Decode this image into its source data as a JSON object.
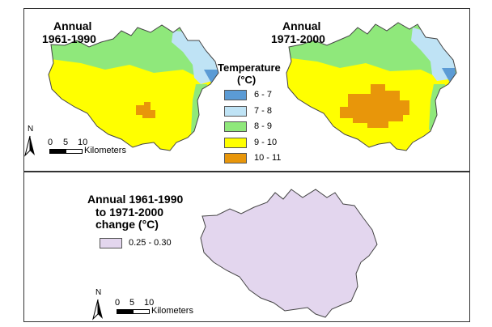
{
  "maps": {
    "annual_1961_1990": {
      "title_line1": "Annual",
      "title_line2": "1961-1990"
    },
    "annual_1971_2000": {
      "title_line1": "Annual",
      "title_line2": "1971-2000"
    },
    "change": {
      "title_line1": "Annual 1961-1990",
      "title_line2": "to 1971-2000",
      "title_line3": "change (°C)"
    }
  },
  "temperature_legend": {
    "title_line1": "Temperature",
    "title_line2": "(°C)",
    "classes": [
      {
        "label": "6 - 7",
        "color": "#5b9bd5"
      },
      {
        "label": "7 - 8",
        "color": "#bfe3f5"
      },
      {
        "label": "8 - 9",
        "color": "#8fe87b"
      },
      {
        "label": "9 - 10",
        "color": "#ffff00"
      },
      {
        "label": "10 - 11",
        "color": "#e8960a"
      }
    ]
  },
  "change_legend": {
    "classes": [
      {
        "label": "0.25 - 0.30",
        "color": "#e3d6ee"
      }
    ]
  },
  "scalebar": {
    "north": "N",
    "ticks": [
      "0",
      "5",
      "10"
    ],
    "unit": "Kilometers"
  }
}
